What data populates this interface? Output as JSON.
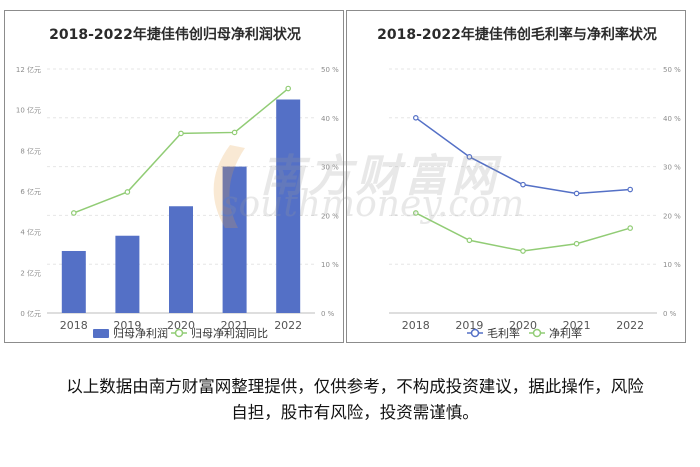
{
  "charts_title_left": "2018-2022年捷佳伟创归母净利润状况",
  "charts_title_right": "2018-2022年捷佳伟创毛利率与净利率状况",
  "watermark": {
    "cn": "南方财富网",
    "en": "southmoney.com"
  },
  "disclaimer": "以上数据由南方财富网整理提供，仅供参考，不构成投资建议，据此操作，风险自担，股市有风险，投资需谨慎。",
  "colors": {
    "bar": "#5470c6",
    "green": "#91cc75",
    "blue": "#5470c6",
    "axis_text": "#8c8c8c",
    "grid": "#e6e6e6"
  },
  "chart_data": [
    {
      "type": "bar",
      "title": "2018-2022年捷佳伟创归母净利润状况",
      "categories": [
        "2018",
        "2019",
        "2020",
        "2021",
        "2022"
      ],
      "y_left": {
        "ticks": [
          "0 亿元",
          "2 亿元",
          "4 亿元",
          "6 亿元",
          "8 亿元",
          "10 亿元",
          "12 亿元"
        ],
        "ylim": [
          0,
          12
        ]
      },
      "y_right": {
        "ticks": [
          "0 %",
          "10 %",
          "20 %",
          "30 %",
          "40 %",
          "50 %"
        ],
        "ylim": [
          0,
          50
        ]
      },
      "series": [
        {
          "name": "归母净利润",
          "type": "bar",
          "axis": "left",
          "values": [
            3.05,
            3.8,
            5.25,
            7.2,
            10.5
          ]
        },
        {
          "name": "归母净利润同比",
          "type": "line",
          "axis": "right",
          "values": [
            20.5,
            24.8,
            36.8,
            37.0,
            46.0
          ]
        }
      ]
    },
    {
      "type": "line",
      "title": "2018-2022年捷佳伟创毛利率与净利率状况",
      "categories": [
        "2018",
        "2019",
        "2020",
        "2021",
        "2022"
      ],
      "y_right": {
        "ticks": [
          "0 %",
          "10 %",
          "20 %",
          "30 %",
          "40 %",
          "50 %"
        ],
        "ylim": [
          0,
          50
        ]
      },
      "series": [
        {
          "name": "毛利率",
          "type": "line",
          "values": [
            40.0,
            32.0,
            26.3,
            24.5,
            25.3
          ]
        },
        {
          "name": "净利率",
          "type": "line",
          "values": [
            20.5,
            14.9,
            12.7,
            14.2,
            17.4
          ]
        }
      ]
    }
  ]
}
